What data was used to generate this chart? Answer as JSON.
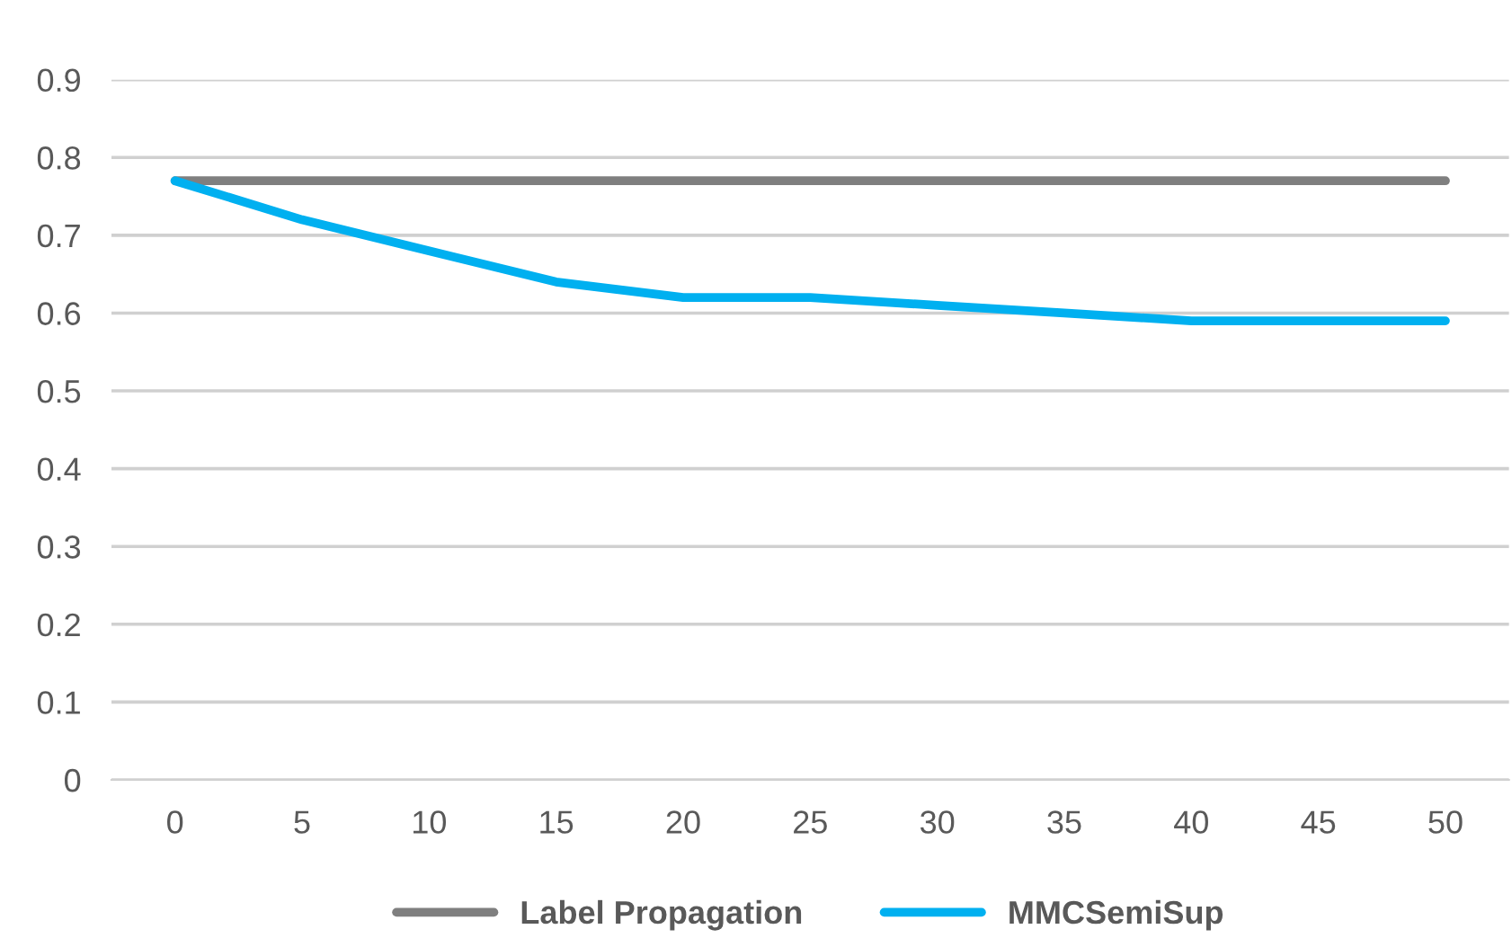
{
  "chart_data": {
    "type": "line",
    "categories": [
      "0",
      "5",
      "10",
      "15",
      "20",
      "25",
      "30",
      "35",
      "40",
      "45",
      "50"
    ],
    "series": [
      {
        "name": "Label Propagation",
        "color": "#7f7f7f",
        "values": [
          0.77,
          0.77,
          0.77,
          0.77,
          0.77,
          0.77,
          0.77,
          0.77,
          0.77,
          0.77,
          0.77
        ]
      },
      {
        "name": "MMCSemiSup",
        "color": "#00b0f0",
        "values": [
          0.77,
          0.72,
          0.68,
          0.64,
          0.62,
          0.62,
          0.61,
          0.6,
          0.59,
          0.59,
          0.59
        ]
      }
    ],
    "ylim": [
      0,
      0.9
    ],
    "yticks": [
      0,
      0.1,
      0.2,
      0.3,
      0.4,
      0.5,
      0.6,
      0.7,
      0.8,
      0.9
    ],
    "grid": "y",
    "legend": "bottom",
    "marker": "none",
    "line_style": "solid"
  }
}
